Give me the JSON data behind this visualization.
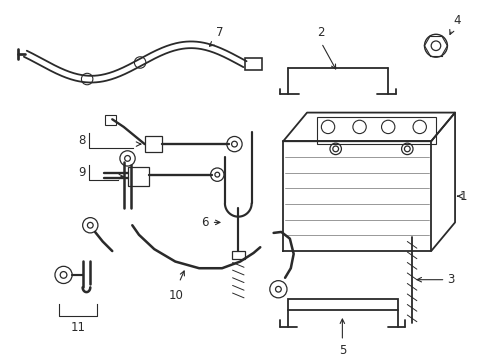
{
  "bg_color": "#ffffff",
  "line_color": "#2a2a2a",
  "label_color": "#000000",
  "lw": 1.3,
  "fig_width": 4.89,
  "fig_height": 3.6
}
